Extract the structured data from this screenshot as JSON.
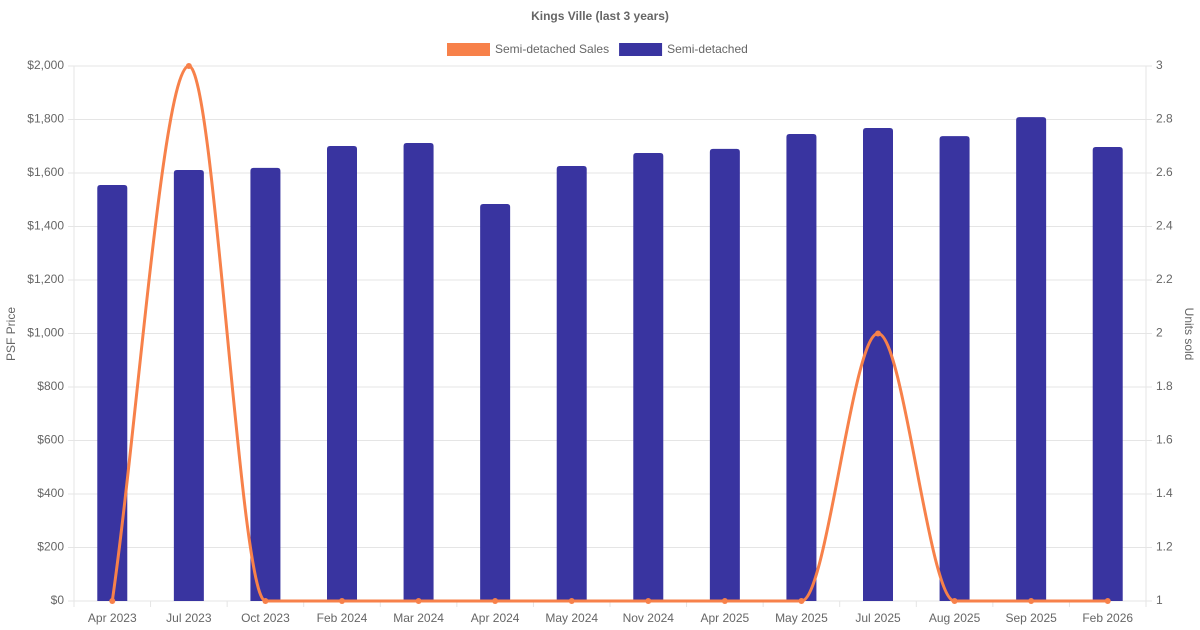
{
  "chart_data": {
    "type": "bar",
    "title": "Kings Ville (last 3 years)",
    "y_label": "PSF Price",
    "y2_label": "Units sold",
    "categories": [
      "Apr 2023",
      "Jul 2023",
      "Oct 2023",
      "Feb 2024",
      "Mar 2024",
      "Apr 2024",
      "May 2024",
      "Nov 2024",
      "Apr 2025",
      "May 2025",
      "Jul 2025",
      "Aug 2025",
      "Sep 2025",
      "Feb 2026"
    ],
    "series": [
      {
        "name": "Semi-detached Sales",
        "type": "line",
        "axis": "y2",
        "color": "#f7814a",
        "values": [
          1,
          3,
          1,
          1,
          1,
          1,
          1,
          1,
          1,
          1,
          2,
          1,
          1,
          1
        ]
      },
      {
        "name": "Semi-detached",
        "type": "bar",
        "axis": "y",
        "color": "#3934a0",
        "values": [
          1555,
          1611,
          1619,
          1701,
          1712,
          1484,
          1626,
          1675,
          1690,
          1746,
          1768,
          1738,
          1809,
          1697
        ]
      }
    ],
    "ylim": [
      0,
      2000
    ],
    "yticks": [
      {
        "value": 0,
        "label": "$0"
      },
      {
        "value": 200,
        "label": "$200"
      },
      {
        "value": 400,
        "label": "$400"
      },
      {
        "value": 600,
        "label": "$600"
      },
      {
        "value": 800,
        "label": "$800"
      },
      {
        "value": 1000,
        "label": "$1,000"
      },
      {
        "value": 1200,
        "label": "$1,200"
      },
      {
        "value": 1400,
        "label": "$1,400"
      },
      {
        "value": 1600,
        "label": "$1,600"
      },
      {
        "value": 1800,
        "label": "$1,800"
      },
      {
        "value": 2000,
        "label": "$2,000"
      }
    ],
    "y2lim": [
      1,
      3
    ],
    "y2ticks": [
      1,
      1.2,
      1.4,
      1.6,
      1.8,
      2,
      2.2,
      2.4,
      2.6,
      2.8,
      3
    ],
    "grid": true
  }
}
